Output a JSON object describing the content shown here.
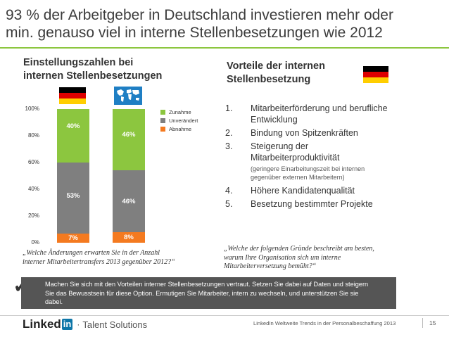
{
  "title_line1": "93 % der Arbeitgeber in Deutschland investieren mehr oder",
  "title_line2": "min. genauso viel in interne Stellenbesetzungen wie 2012",
  "left": {
    "title_line1": "Einstellungszahlen bei",
    "title_line2": "internen Stellenbesetzungen",
    "quote_line1": "„Welche Änderungen erwarten Sie in der Anzahl",
    "quote_line2": "interner Mitarbeitertransfers 2013 gegenüber 2012?“"
  },
  "chart_data": {
    "type": "bar",
    "stacked": true,
    "categories": [
      "Deutschland",
      "Weltweit"
    ],
    "series": [
      {
        "name": "Abnahme",
        "values": [
          7,
          8
        ],
        "labels": [
          "7%",
          "8%"
        ],
        "color": "#f47a20"
      },
      {
        "name": "Unverändert",
        "values": [
          53,
          46
        ],
        "labels": [
          "53%",
          "46%"
        ],
        "color": "#7f7f7f"
      },
      {
        "name": "Zunahme",
        "values": [
          40,
          46
        ],
        "labels": [
          "40%",
          "46%"
        ],
        "color": "#8cc63f"
      }
    ],
    "y_ticks": [
      "0%",
      "20%",
      "40%",
      "60%",
      "80%",
      "100%"
    ],
    "ylim": [
      0,
      100
    ],
    "legend": [
      "Zunahme",
      "Unverändert",
      "Abnahme"
    ],
    "legend_placement": "top-right"
  },
  "right": {
    "title_line1": "Vorteile der internen",
    "title_line2": "Stellenbesetzung",
    "items": [
      {
        "num": "1.",
        "line1": "Mitarbeiterförderung und berufliche",
        "line2": "Entwicklung"
      },
      {
        "num": "2.",
        "line1": "Bindung von Spitzenkräften",
        "line2": ""
      },
      {
        "num": "3.",
        "line1": "Steigerung der",
        "line2": "Mitarbeiterproduktivität"
      },
      {
        "num": "4.",
        "line1": "Höhere Kandidatenqualität",
        "line2": ""
      },
      {
        "num": "5.",
        "line1": "Besetzung bestimmter Projekte",
        "line2": ""
      }
    ],
    "note_line1": "(geringere Einarbeitungszeit bei internen",
    "note_line2": "gegenüber externen Mitarbeitern)",
    "quote_line1": "„Welche der folgenden Gründe beschreibt am besten,",
    "quote_line2": "warum Ihre Organisation sich um interne",
    "quote_line3": "Mitarbeiterversetzung bemüht?“"
  },
  "banner": {
    "check": "✓",
    "line1": "Machen Sie sich mit den Vorteilen interner Stellenbesetzungen vertraut. Setzen Sie dabei auf Daten und steigern",
    "line2": "Sie das Bewusstsein für diese Option. Ermutigen Sie Mitarbeiter, intern zu wechseln, und unterstützen Sie sie",
    "line3": "dabei."
  },
  "footer": {
    "brand_linked": "Linked",
    "brand_in": "in",
    "product": "Talent Solutions",
    "source": "LinkedIn Weltweite Trends in der Personalbeschaffung 2013",
    "page": "15"
  },
  "colors": {
    "green": "#8cc63f",
    "grey": "#7f7f7f",
    "orange": "#f47a20",
    "linkedin_blue": "#0e76a8",
    "banner": "#555555"
  }
}
